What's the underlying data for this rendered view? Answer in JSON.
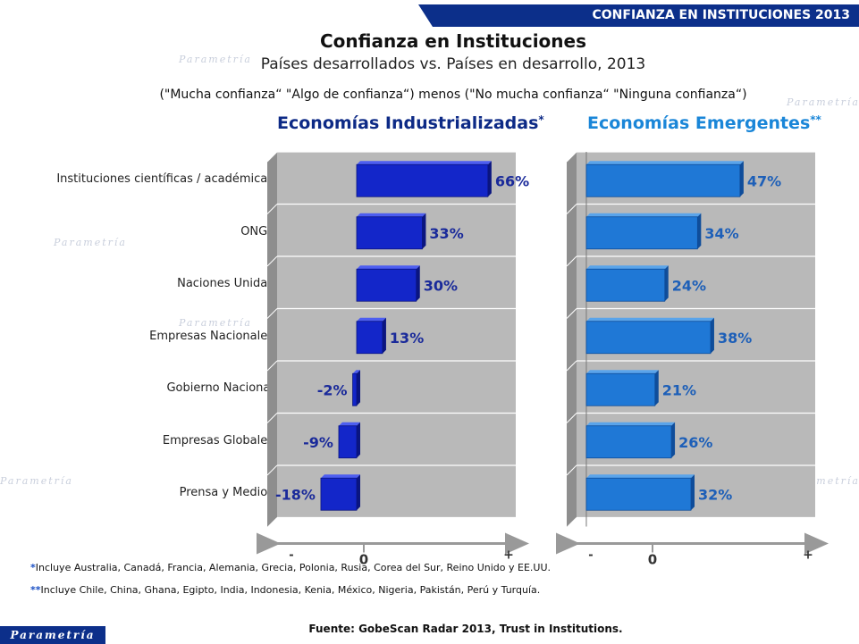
{
  "header": {
    "banner": "CONFIANZA EN INSTITUCIONES 2013"
  },
  "title": "Confianza en Instituciones",
  "subtitle": "Países desarrollados vs. Países en desarrollo, 2013",
  "note": "(\"Mucha confianza“ \"Algo de confianza“) menos (\"No mucha confianza“ \"Ninguna confianza“)",
  "footnotes": {
    "industrializadas_mark": "*",
    "industrializadas": "Incluye Australia, Canadá, Francia, Alemania, Grecia, Polonia, Rusia, Corea del Sur, Reino Unido y EE.UU.",
    "emergentes_mark": "**",
    "emergentes": "Incluye Chile, China, Ghana, Egipto, India, Indonesia, Kenia, México, Nigeria, Pakistán, Perú y Turquía."
  },
  "source": "Fuente: GobeScan Radar 2013, Trust in Institutions.",
  "logo": "Parametría",
  "watermark": "Parametría",
  "colors": {
    "industrializadas": "#1326c9",
    "emergentes": "#1f78d6",
    "banner": "#0c2f8a"
  },
  "chart_data": [
    {
      "type": "bar",
      "title": "Economías Industrializadas",
      "title_mark": "*",
      "orientation": "horizontal",
      "categories": [
        "Instituciones científicas / académicas",
        "ONGs",
        "Naciones Unidas",
        "Empresas Nacionales",
        "Gobierno Nacional",
        "Empresas Globales",
        "Prensa y Medios"
      ],
      "values": [
        66,
        33,
        30,
        13,
        -2,
        -9,
        -18
      ],
      "data_labels": [
        "66%",
        "33%",
        "30%",
        "13%",
        "-2%",
        "-9%",
        "-18%"
      ],
      "axis": {
        "minus": "-",
        "zero": "0",
        "plus": "+"
      },
      "xlim": [
        -40,
        80
      ]
    },
    {
      "type": "bar",
      "title": "Economías Emergentes",
      "title_mark": "**",
      "orientation": "horizontal",
      "categories": [
        "Instituciones científicas / académicas",
        "ONGs",
        "Naciones Unidas",
        "Empresas Nacionales",
        "Gobierno Nacional",
        "Empresas Globales",
        "Prensa y Medios"
      ],
      "values": [
        47,
        34,
        24,
        38,
        21,
        26,
        32
      ],
      "data_labels": [
        "47%",
        "34%",
        "24%",
        "38%",
        "21%",
        "26%",
        "32%"
      ],
      "axis": {
        "minus": "-",
        "zero": "0",
        "plus": "+"
      },
      "xlim": [
        -3,
        70
      ]
    }
  ]
}
